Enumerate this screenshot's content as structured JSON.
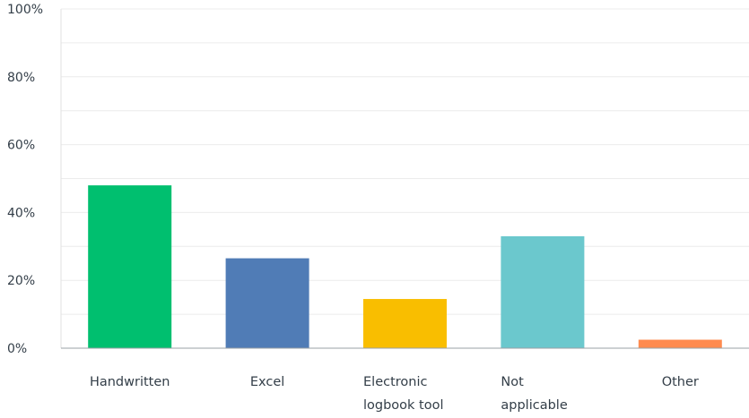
{
  "chart_data": {
    "type": "bar",
    "categories": [
      [
        "Handwritten"
      ],
      [
        "Excel"
      ],
      [
        "Electronic",
        "logbook tool"
      ],
      [
        "Not",
        "applicable"
      ],
      [
        "Other"
      ]
    ],
    "values": [
      48,
      26.5,
      14.5,
      33,
      2.5
    ],
    "colors": [
      "#00bf6f",
      "#507cb6",
      "#f9be00",
      "#6bc8cd",
      "#ff8b4f"
    ],
    "ylim": [
      0,
      100
    ],
    "yticks": [
      0,
      20,
      40,
      60,
      80,
      100
    ],
    "ytick_labels": [
      "0%",
      "20%",
      "40%",
      "60%",
      "80%",
      "100%"
    ],
    "grid": true,
    "title": "",
    "xlabel": "",
    "ylabel": ""
  }
}
